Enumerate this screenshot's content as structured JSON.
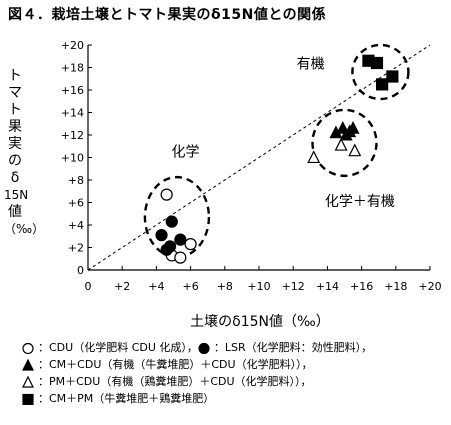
{
  "title": "図４．栽培土壌とトマト果実のδ15N値との関係",
  "chart_data": {
    "type": "scatter",
    "title": "図４．栽培土壌とトマト果実のδ15N値との関係",
    "xlabel": "土壌のδ15N値（‰）",
    "ylabel_lines": [
      "ト",
      "マ",
      "ト",
      "果",
      "実",
      "の",
      "δ",
      "15N",
      "値",
      "（‰）"
    ],
    "xlim": [
      0,
      20
    ],
    "ylim": [
      0,
      20
    ],
    "x_ticks": [
      "0",
      "+2",
      "+4",
      "+6",
      "+8",
      "+10",
      "+12",
      "+14",
      "+16",
      "+18",
      "+20"
    ],
    "y_ticks": [
      "0",
      "+2",
      "+4",
      "+6",
      "+8",
      "+10",
      "+12",
      "+14",
      "+16",
      "+18",
      "+20"
    ],
    "reference_line": "y = x (dashed)",
    "series": [
      {
        "name": "CDU（化学肥料 CDU 化成）",
        "marker": "open-circle",
        "points": [
          [
            4.6,
            6.7
          ],
          [
            6.0,
            2.3
          ],
          [
            4.9,
            1.3
          ],
          [
            5.4,
            1.1
          ]
        ]
      },
      {
        "name": "LSR（化学肥料：効性肥料）",
        "marker": "filled-circle",
        "points": [
          [
            4.9,
            4.3
          ],
          [
            4.3,
            3.1
          ],
          [
            5.4,
            2.7
          ],
          [
            4.8,
            2.1
          ],
          [
            4.6,
            1.8
          ]
        ]
      },
      {
        "name": "CM＋CDU（有機（牛糞堆肥）＋CDU（化学肥料））",
        "marker": "filled-triangle",
        "points": [
          [
            14.5,
            12.2
          ],
          [
            14.9,
            12.6
          ],
          [
            15.3,
            12.3
          ],
          [
            15.5,
            12.6
          ],
          [
            15.1,
            12.0
          ]
        ]
      },
      {
        "name": "PM＋CDU（有機（鶏糞堆肥）＋CDU（化学肥料））",
        "marker": "open-triangle",
        "points": [
          [
            13.2,
            10.0
          ],
          [
            14.8,
            11.1
          ],
          [
            15.6,
            10.6
          ]
        ]
      },
      {
        "name": "CM＋PM（牛糞堆肥＋鶏糞堆肥）",
        "marker": "filled-square",
        "points": [
          [
            16.4,
            18.6
          ],
          [
            16.9,
            18.4
          ],
          [
            17.2,
            16.5
          ],
          [
            17.8,
            17.2
          ]
        ]
      }
    ],
    "group_labels": [
      "化学",
      "化学＋有機",
      "有機"
    ],
    "legend_lines": [
      [
        {
          "marker": "open-circle",
          "text": "：CDU（化学肥料 CDU 化成），"
        },
        {
          "marker": "filled-circle",
          "text": "：LSR（化学肥料：効性肥料），"
        }
      ],
      [
        {
          "marker": "filled-triangle",
          "text": "：CM＋CDU（有機（牛糞堆肥）＋CDU（化学肥料）），"
        }
      ],
      [
        {
          "marker": "open-triangle",
          "text": "：PM＋CDU（有機（鶏糞堆肥）＋CDU（化学肥料）），"
        }
      ],
      [
        {
          "marker": "filled-square",
          "text": "：CM＋PM（牛糞堆肥＋鶏糞堆肥）"
        }
      ]
    ]
  }
}
